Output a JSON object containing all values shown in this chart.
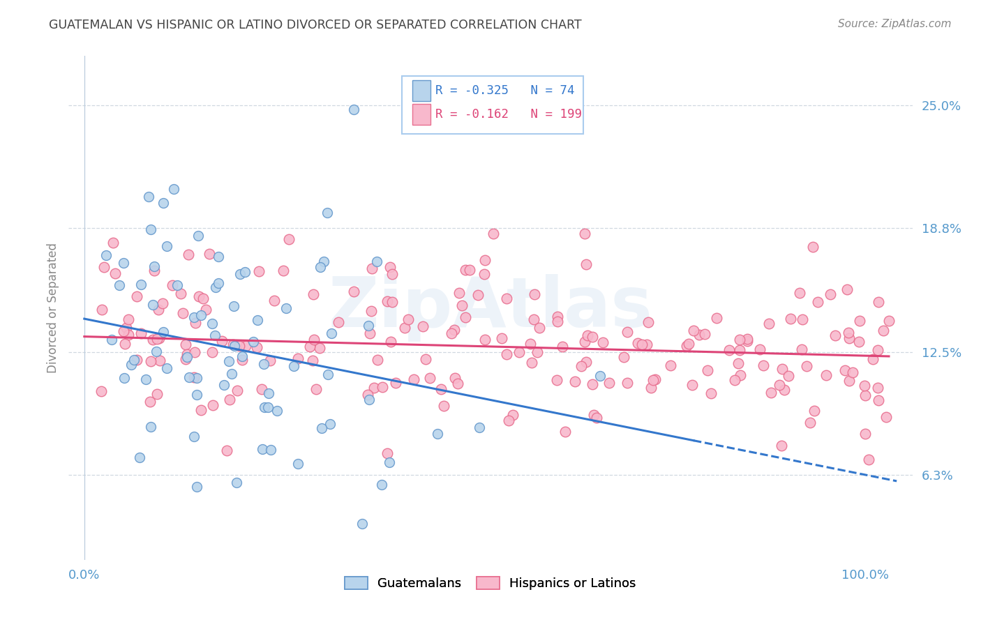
{
  "title": "GUATEMALAN VS HISPANIC OR LATINO DIVORCED OR SEPARATED CORRELATION CHART",
  "source": "Source: ZipAtlas.com",
  "ylabel": "Divorced or Separated",
  "legend_labels": [
    "Guatemalans",
    "Hispanics or Latinos"
  ],
  "blue_R": -0.325,
  "blue_N": 74,
  "pink_R": -0.162,
  "pink_N": 199,
  "blue_color": "#b8d4ec",
  "blue_edge_color": "#6699cc",
  "pink_color": "#f8b8cc",
  "pink_edge_color": "#e87090",
  "blue_line_color": "#3377cc",
  "pink_line_color": "#dd4477",
  "ytick_labels": [
    "6.3%",
    "12.5%",
    "18.8%",
    "25.0%"
  ],
  "ytick_values": [
    0.063,
    0.125,
    0.188,
    0.25
  ],
  "xtick_labels": [
    "0.0%",
    "100.0%"
  ],
  "xtick_values": [
    0.0,
    1.0
  ],
  "xlim": [
    -0.02,
    1.06
  ],
  "ylim": [
    0.02,
    0.275
  ],
  "watermark": "ZipAtlas",
  "background_color": "#ffffff",
  "grid_color": "#d0d8e0",
  "title_color": "#444444",
  "axis_label_color": "#5599cc",
  "seed": 42
}
